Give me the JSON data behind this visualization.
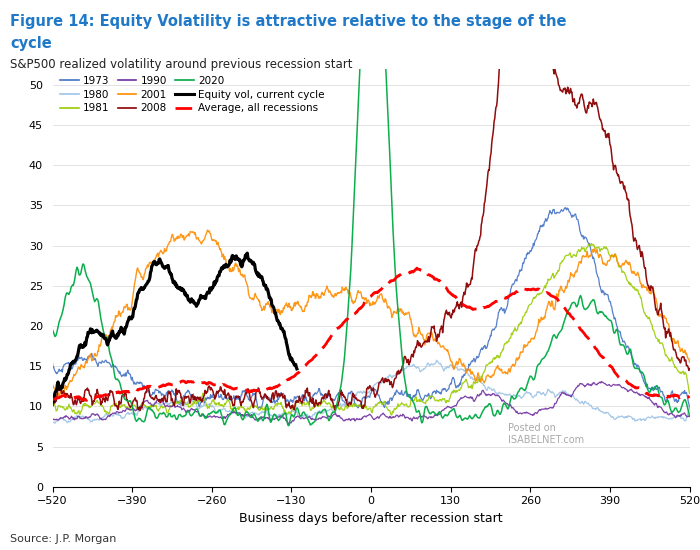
{
  "title_line1": "Figure 14: Equity Volatility is attractive relative to the stage of the",
  "title_line2": "cycle",
  "subtitle": "S&P500 realized volatility around previous recession start",
  "xlabel": "Business days before/after recession start",
  "source": "Source: J.P. Morgan",
  "x_start": -520,
  "x_end": 520,
  "x_ticks": [
    -520,
    -390,
    -260,
    -130,
    0,
    130,
    260,
    390,
    520
  ],
  "y_ticks": [
    0,
    5,
    10,
    15,
    20,
    25,
    30,
    35,
    40,
    45,
    50
  ],
  "ylim": [
    0,
    52
  ],
  "colors": {
    "1973": "#4472C4",
    "1980": "#9DC3E6",
    "1981": "#99CC00",
    "1990": "#7030A0",
    "2001": "#FF8C00",
    "2008": "#8B0000",
    "2020": "#00AA44",
    "current": "#000000",
    "average": "#FF0000"
  },
  "title_color": "#1F78C8",
  "subtitle_color": "#222222",
  "watermark_color": "#aaaaaa"
}
